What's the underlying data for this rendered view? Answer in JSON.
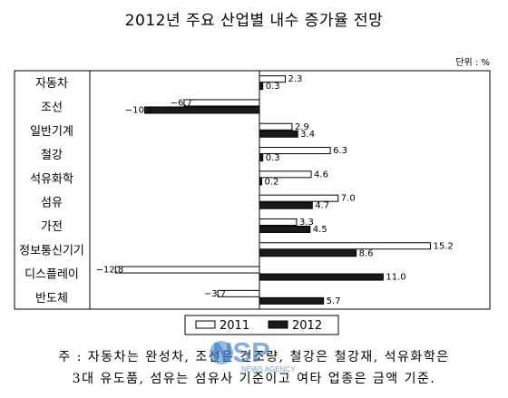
{
  "chart_data": {
    "type": "bar",
    "orientation": "horizontal",
    "title": "2012년 주요 산업별 내수 증가율 전망",
    "unit_label": "단위 : %",
    "categories": [
      "자동차",
      "조선",
      "일반기계",
      "철강",
      "석유화학",
      "섬유",
      "가전",
      "정보통신기기",
      "디스플레이",
      "반도체"
    ],
    "series": [
      {
        "name": "2011",
        "values": [
          2.3,
          -6.7,
          2.9,
          6.3,
          4.6,
          7.0,
          3.3,
          15.2,
          -12.8,
          -3.7
        ],
        "color": "#ffffff"
      },
      {
        "name": "2012",
        "values": [
          0.3,
          -10.2,
          3.4,
          0.3,
          0.2,
          4.7,
          4.5,
          8.6,
          11.0,
          5.7
        ],
        "color": "#1a1a1a"
      }
    ],
    "value_labels": [
      [
        "2.3",
        "−6.7",
        "2.9",
        "6.3",
        "4.6",
        "7.0",
        "3.3",
        "15.2",
        "−12.8",
        "−3.7"
      ],
      [
        "0.3",
        "−10.2",
        "3.4",
        "0.3",
        "0.2",
        "4.7",
        "4.5",
        "8.6",
        "11.0",
        "5.7"
      ]
    ],
    "xlim": [
      -16,
      16.8
    ],
    "grid": false,
    "legend": "bottom"
  },
  "footnote": {
    "line1": "주 : 자동차는 완성차, 조선은 건조량, 철강은 철강재, 석유화학은",
    "line2": "3대 유도품, 섬유는 섬유사 기준이고 여타 업종은 금액 기준."
  },
  "watermark": {
    "text": "NSP",
    "subtext": "NEWS AGENCY"
  }
}
